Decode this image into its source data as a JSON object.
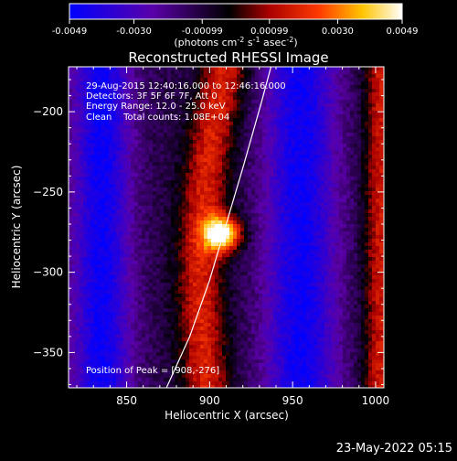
{
  "colorbar": {
    "tick_labels": [
      "-0.0049",
      "-0.0030",
      "-0.00099",
      "0.00099",
      "0.0030",
      "0.0049"
    ],
    "tick_values": [
      -0.0049,
      -0.003,
      -0.00099,
      0.00099,
      0.003,
      0.0049
    ],
    "range": [
      -0.0049,
      0.0049
    ],
    "unit_base": "(photons cm",
    "unit_exp1": "-2",
    "unit_mid1": " s",
    "unit_exp2": "-1",
    "unit_mid2": " asec",
    "unit_exp3": "-2",
    "unit_end": ")",
    "colors": [
      "#0000ff",
      "#5a00a8",
      "#000000",
      "#aa0000",
      "#ff4000",
      "#ffd000",
      "#ffffff"
    ]
  },
  "chart_data": {
    "type": "heatmap",
    "title": "Reconstructed RHESSI Image",
    "xlabel": "Heliocentric X (arcsec)",
    "ylabel": "Heliocentric Y (arcsec)",
    "xlim": [
      815,
      1005
    ],
    "ylim": [
      -372,
      -172
    ],
    "x_ticks": [
      850,
      900,
      950,
      1000
    ],
    "y_ticks": [
      -200,
      -250,
      -300,
      -350
    ],
    "x_tick_labels": [
      "850",
      "900",
      "950",
      "1000"
    ],
    "y_tick_labels": [
      "−200",
      "−250",
      "−300",
      "−350"
    ],
    "info_lines": [
      "29-Aug-2015 12:40:16.000 to 12:46:16.000",
      "Detectors: 3F 5F 6F 7F, Att 0",
      "Energy Range: 12.0 - 25.0 keV",
      "Clean    Total counts: 1.08E+04"
    ],
    "peak_label": "Position of Peak = [908,-276]",
    "peak": [
      908,
      -276
    ],
    "limb_line": [
      [
        874,
        -372
      ],
      [
        888,
        -340
      ],
      [
        900,
        -305
      ],
      [
        910,
        -270
      ],
      [
        920,
        -235
      ],
      [
        931,
        -195
      ],
      [
        937,
        -172
      ]
    ],
    "timestamp": "23-May-2022 05:15"
  }
}
